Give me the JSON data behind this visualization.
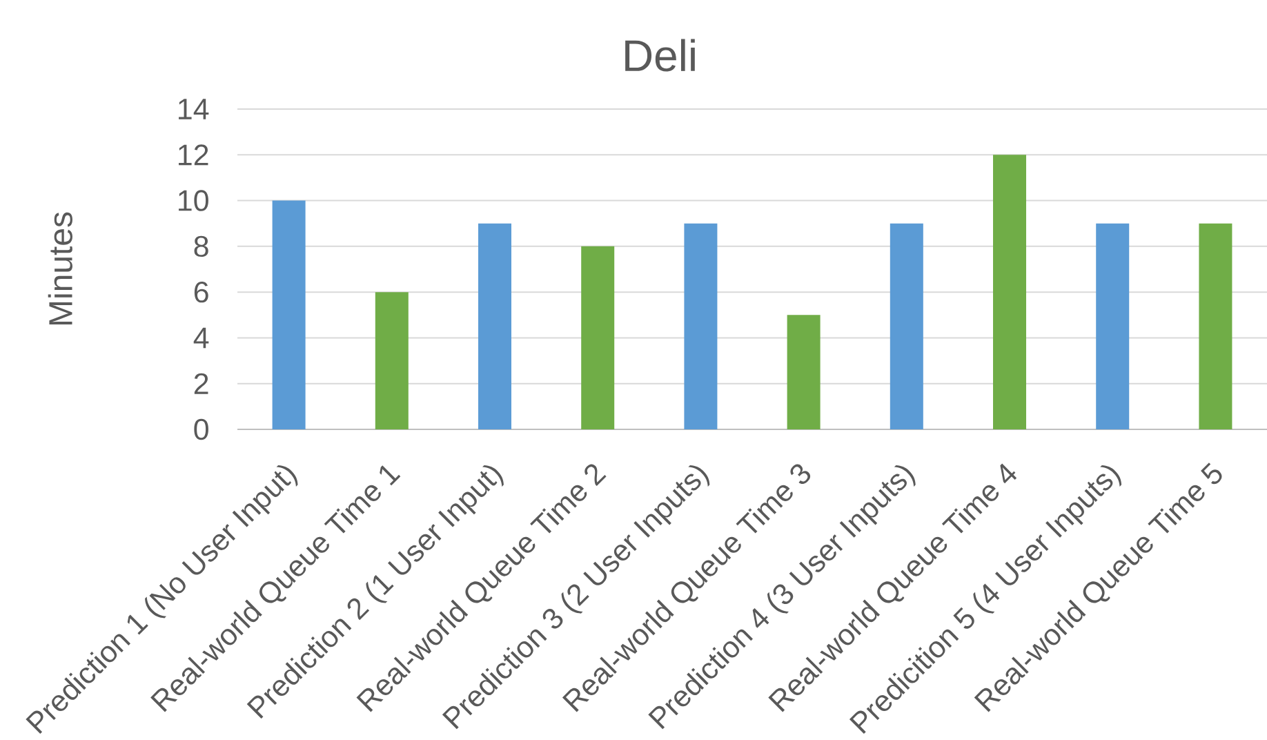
{
  "chart_data": {
    "type": "bar",
    "title": "Deli",
    "ylabel": "Minutes",
    "categories": [
      "Prediction 1 (No User Input)",
      "Real-world Queue Time 1",
      "Prediction 2 (1 User Input)",
      "Real-world Queue Time 2",
      "Prediction 3 (2 User Inputs)",
      "Real-world Queue Time 3",
      "Prediction 4 (3 User Inputs)",
      "Real-world Queue Time 4",
      "Predicition 5 (4 User Inputs)",
      "Real-world Queue Time 5"
    ],
    "values": [
      10,
      6,
      9,
      8,
      9,
      5,
      9,
      12,
      9,
      9
    ],
    "colors": [
      "#5b9bd5",
      "#70ad47",
      "#5b9bd5",
      "#70ad47",
      "#5b9bd5",
      "#70ad47",
      "#5b9bd5",
      "#70ad47",
      "#5b9bd5",
      "#70ad47"
    ],
    "ylim": [
      0,
      14
    ],
    "yticks": [
      0,
      2,
      4,
      6,
      8,
      10,
      12,
      14
    ],
    "grid": "y"
  }
}
